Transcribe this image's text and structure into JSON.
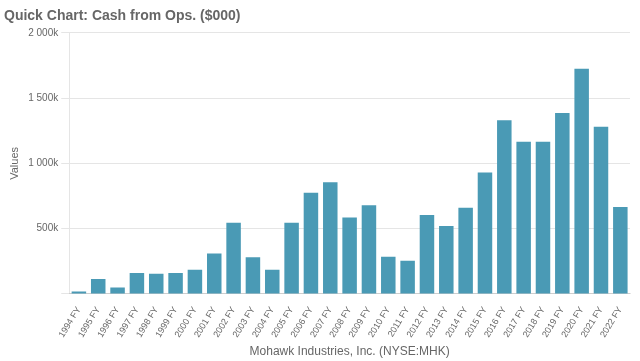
{
  "chart_data": {
    "type": "bar",
    "title": "Quick Chart: Cash from Ops. ($000)",
    "xlabel": "Mohawk Industries, Inc. (NYSE:MHK)",
    "ylabel": "Values",
    "categories": [
      "1994 FY",
      "1995 FY",
      "1996 FY",
      "1997 FY",
      "1998 FY",
      "1999 FY",
      "2000 FY",
      "2001 FY",
      "2002 FY",
      "2003 FY",
      "2004 FY",
      "2005 FY",
      "2006 FY",
      "2007 FY",
      "2008 FY",
      "2009 FY",
      "2010 FY",
      "2011 FY",
      "2012 FY",
      "2013 FY",
      "2014 FY",
      "2015 FY",
      "2016 FY",
      "2017 FY",
      "2018 FY",
      "2019 FY",
      "2020 FY",
      "2021 FY",
      "2022 FY"
    ],
    "values": [
      18000,
      115000,
      50000,
      160000,
      155000,
      160000,
      185000,
      310000,
      545000,
      280000,
      185000,
      545000,
      775000,
      855000,
      585000,
      680000,
      285000,
      255000,
      605000,
      520000,
      660000,
      930000,
      1330000,
      1165000,
      1165000,
      1385000,
      1725000,
      1280000,
      665000
    ],
    "color": "#4a9ab5",
    "ylim": [
      0,
      2000000
    ],
    "yticks": [
      {
        "value": 0,
        "label": null
      },
      {
        "value": 500000,
        "label": "500k"
      },
      {
        "value": 1000000,
        "label": "1 000k"
      },
      {
        "value": 1500000,
        "label": "1 500k"
      },
      {
        "value": 2000000,
        "label": "2 000k"
      }
    ],
    "grid": true
  }
}
